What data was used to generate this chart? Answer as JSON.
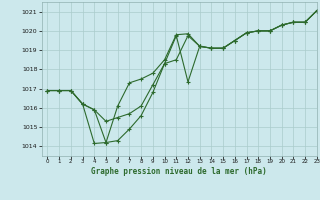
{
  "title": "Graphe pression niveau de la mer (hPa)",
  "bg_color": "#cce8ec",
  "line_color": "#2d6a2d",
  "grid_color": "#aacccc",
  "xlim": [
    -0.5,
    23
  ],
  "ylim": [
    1013.5,
    1021.5
  ],
  "yticks": [
    1014,
    1015,
    1016,
    1017,
    1018,
    1019,
    1020,
    1021
  ],
  "xticks": [
    0,
    1,
    2,
    3,
    4,
    5,
    6,
    7,
    8,
    9,
    10,
    11,
    12,
    13,
    14,
    15,
    16,
    17,
    18,
    19,
    20,
    21,
    22,
    23
  ],
  "series1": {
    "x": [
      0,
      1,
      2,
      3,
      4,
      5,
      6,
      7,
      8,
      9,
      10,
      11,
      12,
      13,
      14,
      15,
      16,
      17,
      18,
      19,
      20,
      21,
      22,
      23
    ],
    "y": [
      1016.9,
      1016.9,
      1016.9,
      1016.2,
      1015.9,
      1014.2,
      1016.1,
      1017.3,
      1017.5,
      1017.8,
      1018.5,
      1019.8,
      1019.85,
      1019.2,
      1019.1,
      1019.1,
      1019.5,
      1019.9,
      1020.0,
      1020.0,
      1020.3,
      1020.45,
      1020.45,
      1021.05
    ]
  },
  "series2": {
    "x": [
      0,
      1,
      2,
      3,
      4,
      5,
      6,
      7,
      8,
      9,
      10,
      11,
      12,
      13,
      14,
      15,
      16,
      17,
      18,
      19,
      20,
      21,
      22,
      23
    ],
    "y": [
      1016.9,
      1016.9,
      1016.9,
      1016.2,
      1014.15,
      1014.2,
      1014.3,
      1014.9,
      1015.6,
      1016.8,
      1018.3,
      1018.5,
      1019.75,
      1019.2,
      1019.1,
      1019.1,
      1019.5,
      1019.9,
      1020.0,
      1020.0,
      1020.3,
      1020.45,
      1020.45,
      1021.05
    ]
  },
  "series3": {
    "x": [
      0,
      1,
      2,
      3,
      4,
      5,
      6,
      7,
      8,
      9,
      10,
      11,
      12,
      13,
      14,
      15,
      16,
      17,
      18,
      19,
      20,
      21,
      22,
      23
    ],
    "y": [
      1016.9,
      1016.9,
      1016.9,
      1016.2,
      1015.9,
      1015.3,
      1015.5,
      1015.7,
      1016.1,
      1017.2,
      1018.3,
      1019.75,
      1017.35,
      1019.2,
      1019.1,
      1019.1,
      1019.5,
      1019.9,
      1020.0,
      1020.0,
      1020.3,
      1020.45,
      1020.45,
      1021.05
    ]
  }
}
